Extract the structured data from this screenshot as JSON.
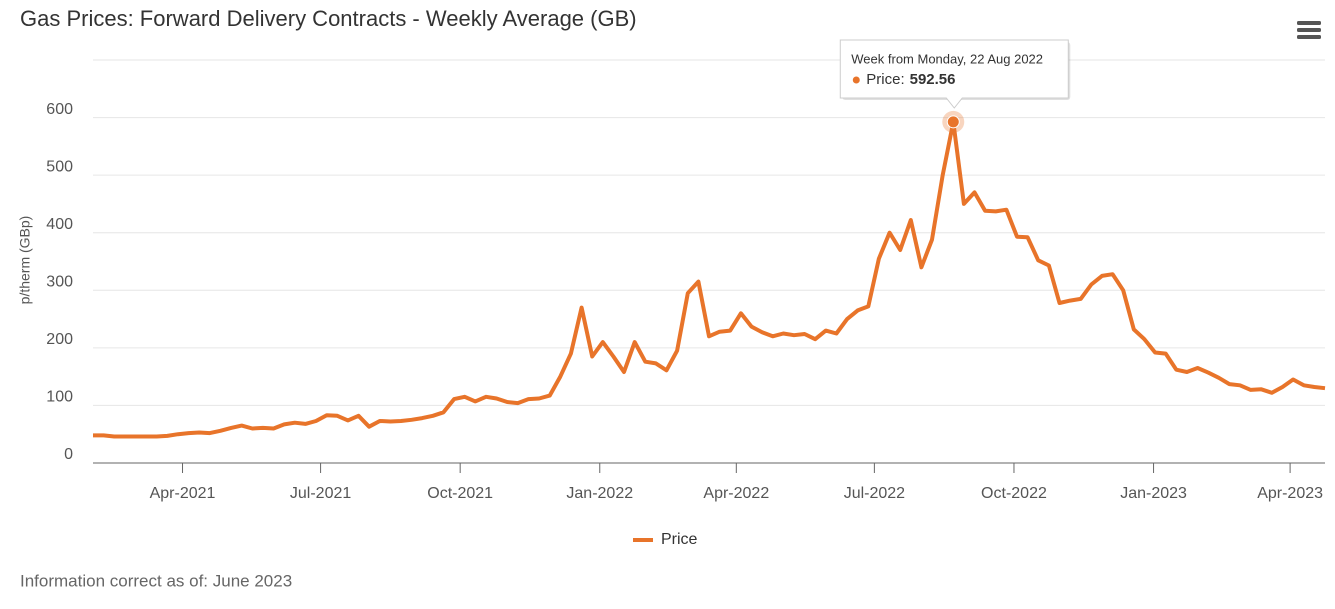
{
  "chart_data": {
    "type": "line",
    "title": "Gas Prices: Forward Delivery Contracts - Weekly Average (GB)",
    "y_label": "p/therm (GBp)",
    "footer": "Information correct as of: June 2023",
    "x": [
      "2021-02-01",
      "2021-02-08",
      "2021-02-15",
      "2021-02-22",
      "2021-03-01",
      "2021-03-08",
      "2021-03-15",
      "2021-03-22",
      "2021-03-29",
      "2021-04-05",
      "2021-04-12",
      "2021-04-19",
      "2021-04-26",
      "2021-05-03",
      "2021-05-10",
      "2021-05-17",
      "2021-05-24",
      "2021-05-31",
      "2021-06-07",
      "2021-06-14",
      "2021-06-21",
      "2021-06-28",
      "2021-07-05",
      "2021-07-12",
      "2021-07-19",
      "2021-07-26",
      "2021-08-02",
      "2021-08-09",
      "2021-08-16",
      "2021-08-23",
      "2021-08-30",
      "2021-09-06",
      "2021-09-13",
      "2021-09-20",
      "2021-09-27",
      "2021-10-04",
      "2021-10-11",
      "2021-10-18",
      "2021-10-25",
      "2021-11-01",
      "2021-11-08",
      "2021-11-15",
      "2021-11-22",
      "2021-11-29",
      "2021-12-06",
      "2021-12-13",
      "2021-12-20",
      "2021-12-27",
      "2022-01-03",
      "2022-01-10",
      "2022-01-17",
      "2022-01-24",
      "2022-01-31",
      "2022-02-07",
      "2022-02-14",
      "2022-02-21",
      "2022-02-28",
      "2022-03-07",
      "2022-03-14",
      "2022-03-21",
      "2022-03-28",
      "2022-04-04",
      "2022-04-11",
      "2022-04-18",
      "2022-04-25",
      "2022-05-02",
      "2022-05-09",
      "2022-05-16",
      "2022-05-23",
      "2022-05-30",
      "2022-06-06",
      "2022-06-13",
      "2022-06-20",
      "2022-06-27",
      "2022-07-04",
      "2022-07-11",
      "2022-07-18",
      "2022-07-25",
      "2022-08-01",
      "2022-08-08",
      "2022-08-15",
      "2022-08-22",
      "2022-08-29",
      "2022-09-05",
      "2022-09-12",
      "2022-09-19",
      "2022-09-26",
      "2022-10-03",
      "2022-10-10",
      "2022-10-17",
      "2022-10-24",
      "2022-10-31",
      "2022-11-07",
      "2022-11-14",
      "2022-11-21",
      "2022-11-28",
      "2022-12-05",
      "2022-12-12",
      "2022-12-19",
      "2022-12-26",
      "2023-01-02",
      "2023-01-09",
      "2023-01-16",
      "2023-01-23",
      "2023-01-30",
      "2023-02-06",
      "2023-02-13",
      "2023-02-20",
      "2023-02-27",
      "2023-03-06",
      "2023-03-13",
      "2023-03-20",
      "2023-03-27",
      "2023-04-03",
      "2023-04-10",
      "2023-04-17",
      "2023-04-24"
    ],
    "series": [
      {
        "name": "Price",
        "color": "#e8742a",
        "values": [
          48,
          48,
          46,
          46,
          46,
          46,
          46,
          47,
          50,
          52,
          53,
          52,
          56,
          61,
          65,
          60,
          61,
          60,
          67,
          70,
          68,
          73,
          83,
          82,
          74,
          82,
          63,
          73,
          72,
          73,
          75,
          78,
          82,
          88,
          111,
          115,
          107,
          115,
          112,
          106,
          104,
          111,
          112,
          117,
          150,
          190,
          270,
          185,
          210,
          185,
          158,
          210,
          176,
          173,
          161,
          195,
          295,
          315,
          220,
          228,
          230,
          260,
          237,
          227,
          220,
          225,
          222,
          224,
          215,
          230,
          225,
          250,
          265,
          272,
          355,
          400,
          370,
          422,
          340,
          388,
          500,
          592.56,
          450,
          470,
          438,
          437,
          440,
          393,
          392,
          352,
          343,
          278,
          282,
          285,
          310,
          325,
          328,
          300,
          232,
          215,
          192,
          190,
          162,
          158,
          165,
          157,
          148,
          137,
          135,
          127,
          128,
          122,
          132,
          145,
          135,
          132,
          130
        ]
      }
    ],
    "xlim": [
      "2021-02-01",
      "2023-04-24"
    ],
    "xticks": [
      {
        "value": "2021-04-01",
        "label": "Apr-2021"
      },
      {
        "value": "2021-07-01",
        "label": "Jul-2021"
      },
      {
        "value": "2021-10-01",
        "label": "Oct-2021"
      },
      {
        "value": "2022-01-01",
        "label": "Jan-2022"
      },
      {
        "value": "2022-04-01",
        "label": "Apr-2022"
      },
      {
        "value": "2022-07-01",
        "label": "Jul-2022"
      },
      {
        "value": "2022-10-01",
        "label": "Oct-2022"
      },
      {
        "value": "2023-01-01",
        "label": "Jan-2023"
      },
      {
        "value": "2023-04-01",
        "label": "Apr-2023"
      }
    ],
    "ylim": [
      0,
      700
    ],
    "yticks": [
      0,
      100,
      200,
      300,
      400,
      500,
      600
    ],
    "grid": true,
    "legend": "bottom",
    "tooltip": {
      "header": "Week from Monday, 22 Aug 2022",
      "label": "Price:",
      "value": 592.56
    }
  }
}
